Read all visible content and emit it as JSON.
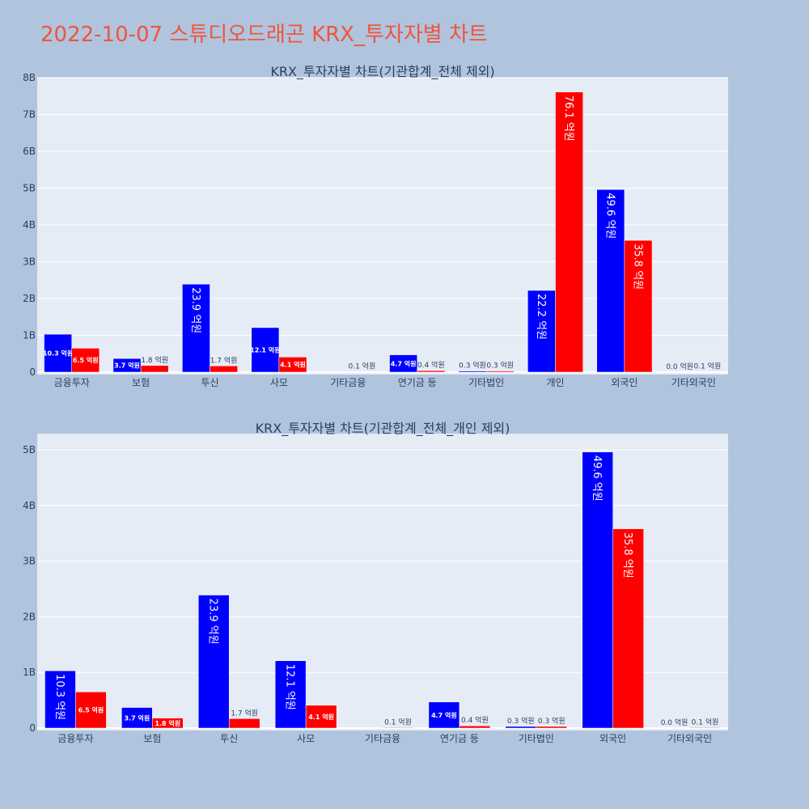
{
  "page_title": "2022-10-07 스튜디오드래곤 KRX_투자자별 차트",
  "colors": {
    "series_1": "#0000ff",
    "series_2": "#ff0000",
    "plot_bg": "#e5ecf6",
    "page_bg": "#b0c4de"
  },
  "chart_data": [
    {
      "type": "bar",
      "title": "KRX_투자자별 차트(기관합계_전체 제외)",
      "categories": [
        "금융투자",
        "보험",
        "투신",
        "사모",
        "기타금융",
        "연기금 등",
        "기타법인",
        "개인",
        "외국인",
        "기타외국인"
      ],
      "ylim": [
        0,
        8000000000
      ],
      "yticks": [
        0,
        1000000000,
        2000000000,
        3000000000,
        4000000000,
        5000000000,
        6000000000,
        7000000000,
        8000000000
      ],
      "ytick_labels": [
        "0",
        "1B",
        "2B",
        "3B",
        "4B",
        "5B",
        "6B",
        "7B",
        "8B"
      ],
      "grid": true,
      "series": [
        {
          "color": "#0000ff",
          "values": [
            1030000000,
            370000000,
            2390000000,
            1210000000,
            0,
            470000000,
            30000000,
            2220000000,
            4960000000,
            0
          ],
          "labels": [
            "10.3 억원",
            "3.7 억원",
            "23.9 억원",
            "12.1 억원",
            "",
            "4.7 억원",
            "0.3 억원",
            "22.2 억원",
            "49.6 억원",
            "0.0 억원"
          ]
        },
        {
          "color": "#ff0000",
          "values": [
            650000000,
            180000000,
            170000000,
            410000000,
            10000000,
            40000000,
            30000000,
            7610000000,
            3580000000,
            10000000
          ],
          "labels": [
            "6.5 억원",
            "1.8 억원",
            "1.7 억원",
            "4.1 억원",
            "0.1 억원",
            "0.4 억원",
            "0.3 억원",
            "76.1 억원",
            "35.8 억원",
            "0.1 억원"
          ]
        }
      ]
    },
    {
      "type": "bar",
      "title": "KRX_투자자별 차트(기관합계_전체_개인 제외)",
      "categories": [
        "금융투자",
        "보험",
        "투신",
        "사모",
        "기타금융",
        "연기금 등",
        "기타법인",
        "외국인",
        "기타외국인"
      ],
      "ylim": [
        0,
        5290000000
      ],
      "yticks": [
        0,
        1000000000,
        2000000000,
        3000000000,
        4000000000,
        5000000000
      ],
      "ytick_labels": [
        "0",
        "1B",
        "2B",
        "3B",
        "4B",
        "5B"
      ],
      "grid": true,
      "series": [
        {
          "color": "#0000ff",
          "values": [
            1030000000,
            370000000,
            2390000000,
            1210000000,
            0,
            470000000,
            30000000,
            4960000000,
            0
          ],
          "labels": [
            "10.3 억원",
            "3.7 억원",
            "23.9 억원",
            "12.1 억원",
            "",
            "4.7 억원",
            "0.3 억원",
            "49.6 억원",
            "0.0 억원"
          ]
        },
        {
          "color": "#ff0000",
          "values": [
            650000000,
            180000000,
            170000000,
            410000000,
            10000000,
            40000000,
            30000000,
            3580000000,
            10000000
          ],
          "labels": [
            "6.5 억원",
            "1.8 억원",
            "1.7 억원",
            "4.1 억원",
            "0.1 억원",
            "0.4 억원",
            "0.3 억원",
            "35.8 억원",
            "0.1 억원"
          ]
        }
      ]
    }
  ]
}
